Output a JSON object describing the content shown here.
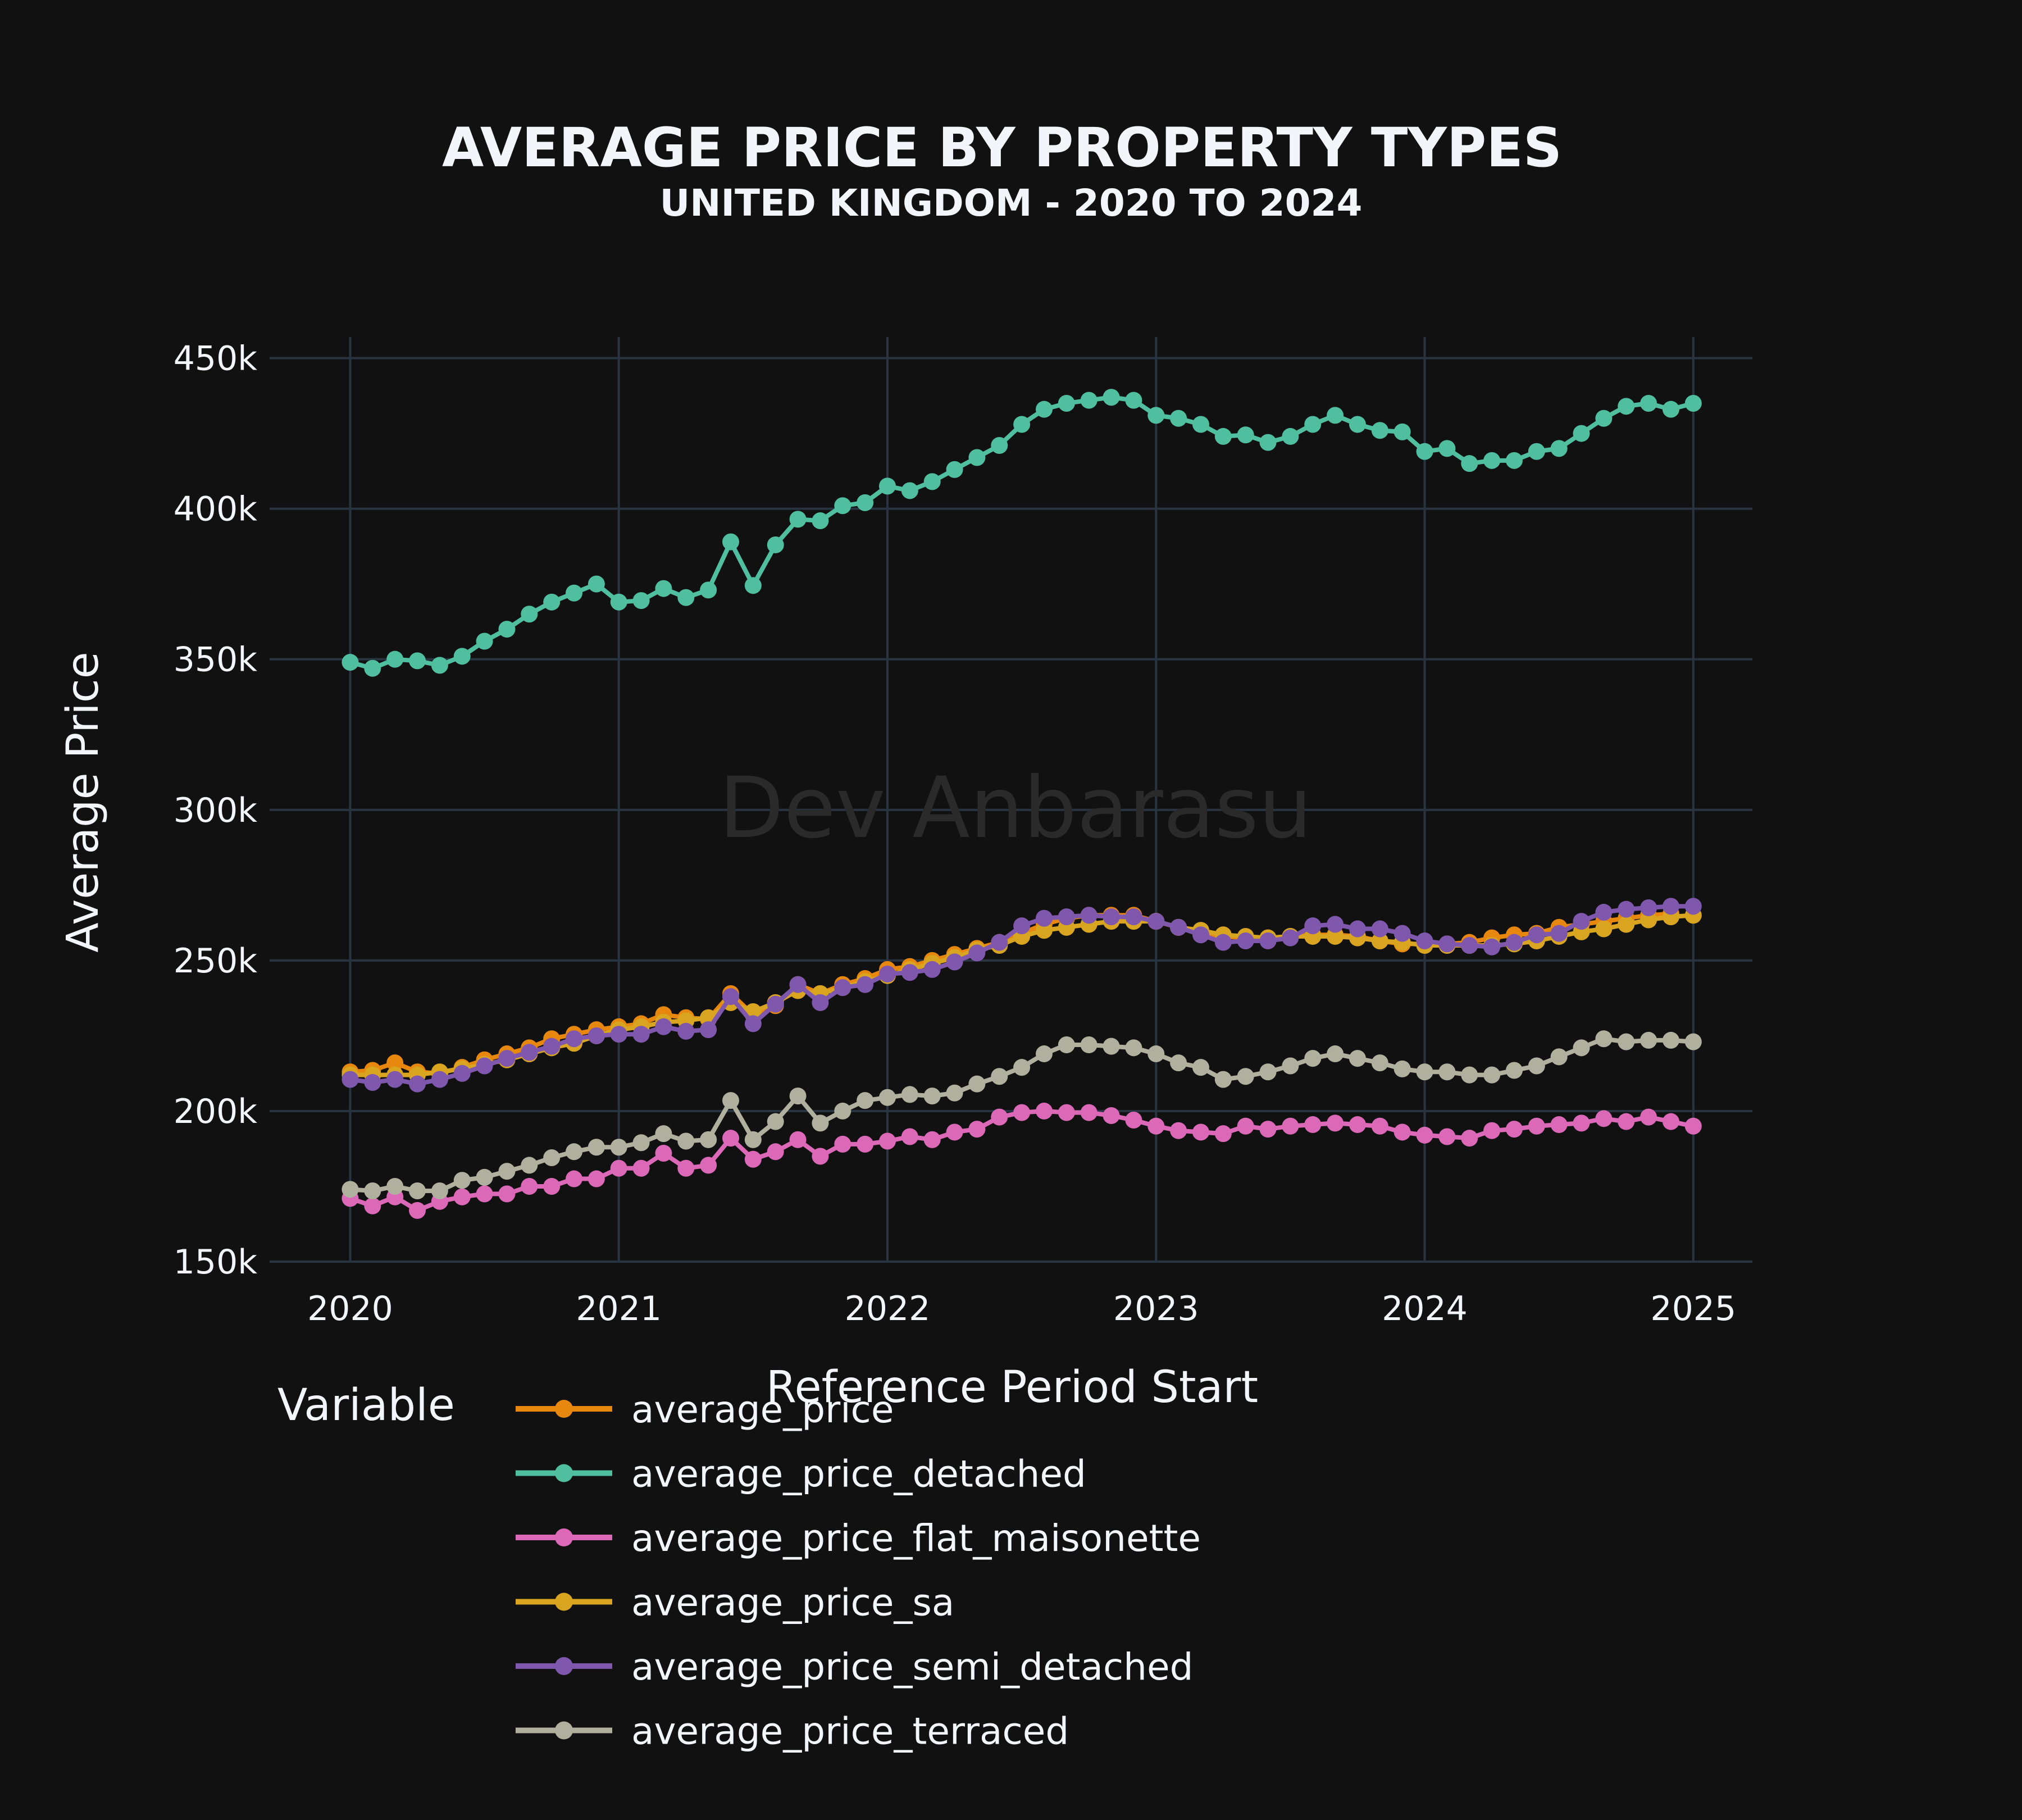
{
  "chart_data": {
    "type": "line",
    "title": "AVERAGE PRICE BY PROPERTY TYPES",
    "subtitle": "UNITED KINGDOM - 2020 TO 2024",
    "xlabel": "Reference Period Start",
    "ylabel": "Average Price",
    "watermark": "Dev Anbarasu",
    "legend_title": "Variable",
    "xlim": [
      2019.7,
      2025.22
    ],
    "ylim": [
      150000,
      457000
    ],
    "x_ticks": [
      2020,
      2021,
      2022,
      2023,
      2024,
      2025
    ],
    "x_tick_labels": [
      "2020",
      "2021",
      "2022",
      "2023",
      "2024",
      "2025"
    ],
    "y_ticks": [
      150000,
      200000,
      250000,
      300000,
      350000,
      400000,
      450000
    ],
    "y_tick_labels": [
      "150k",
      "200k",
      "250k",
      "300k",
      "350k",
      "400k",
      "450k"
    ],
    "x_start": "2020-01",
    "x_step_months": 1,
    "grid": true,
    "background": "#111111",
    "grid_color": "#283442",
    "series": [
      {
        "name": "average_price",
        "color": "#e8870e",
        "values": [
          213000,
          213500,
          216000,
          213000,
          212500,
          214500,
          217000,
          219000,
          221000,
          224000,
          225500,
          227000,
          228000,
          229000,
          232000,
          231000,
          230500,
          239000,
          232000,
          235000,
          242000,
          239000,
          242000,
          244000,
          247000,
          248000,
          250000,
          252000,
          254000,
          256000,
          259000,
          262000,
          264000,
          265000,
          265000,
          265000,
          263000,
          261000,
          259000,
          258000,
          257500,
          257500,
          258000,
          258500,
          258500,
          258000,
          256500,
          255500,
          255500,
          255500,
          256000,
          257500,
          258500,
          259000,
          261000,
          262000,
          263000,
          264000,
          265000,
          265500
        ]
      },
      {
        "name": "average_price_detached",
        "color": "#4fbf9f",
        "values": [
          349000,
          347000,
          350000,
          349500,
          348000,
          351000,
          356000,
          360000,
          365000,
          369000,
          372000,
          375000,
          369000,
          369500,
          373500,
          370500,
          373000,
          389000,
          374500,
          388000,
          396500,
          396000,
          401000,
          402000,
          407500,
          406000,
          409000,
          413000,
          417000,
          421000,
          428000,
          433000,
          435000,
          436000,
          437000,
          436000,
          431000,
          430000,
          428000,
          424000,
          424500,
          422000,
          424000,
          428000,
          431000,
          428000,
          426000,
          425500,
          419000,
          420000,
          415000,
          416000,
          416000,
          419000,
          420000,
          425000,
          430000,
          434000,
          435000,
          433000,
          435000
        ]
      },
      {
        "name": "average_price_flat_maisonette",
        "color": "#dc68b8",
        "values": [
          171000,
          168500,
          171500,
          167000,
          170000,
          171500,
          172500,
          172500,
          175000,
          175000,
          177500,
          177500,
          181000,
          181000,
          186000,
          181000,
          182000,
          191000,
          184000,
          186500,
          190500,
          185000,
          189000,
          189000,
          190000,
          191500,
          190500,
          193000,
          194000,
          198000,
          199500,
          200000,
          199500,
          199500,
          198500,
          197000,
          195000,
          193500,
          193000,
          192500,
          195000,
          194000,
          195000,
          195500,
          196000,
          195500,
          195000,
          193000,
          192000,
          191500,
          191000,
          193500,
          194000,
          195000,
          195500,
          196000,
          197500,
          196500,
          198000,
          196500,
          195000
        ]
      },
      {
        "name": "average_price_sa",
        "color": "#d9a521",
        "values": [
          212000,
          212000,
          212000,
          212000,
          213000,
          214000,
          215500,
          217000,
          219000,
          221000,
          222500,
          225000,
          227000,
          228000,
          229500,
          230000,
          231000,
          236000,
          233000,
          236000,
          240000,
          239000,
          241000,
          243000,
          245000,
          247000,
          249000,
          251000,
          253500,
          255000,
          258000,
          260000,
          261000,
          262000,
          263000,
          263000,
          263000,
          261000,
          260000,
          258500,
          258000,
          257500,
          258000,
          258000,
          258000,
          257500,
          256500,
          256000,
          255000,
          255000,
          255000,
          255000,
          255500,
          256500,
          258000,
          259500,
          260500,
          262000,
          263500,
          264500,
          265000
        ]
      },
      {
        "name": "average_price_semi_detached",
        "color": "#7f58ae",
        "values": [
          210500,
          209500,
          210500,
          209000,
          210500,
          212500,
          215000,
          217500,
          219500,
          221500,
          224000,
          225000,
          225500,
          225500,
          228000,
          226500,
          227000,
          238000,
          229000,
          235500,
          242000,
          236000,
          241000,
          242000,
          245500,
          246000,
          247000,
          249500,
          252500,
          256000,
          261500,
          264000,
          264500,
          265000,
          264500,
          264500,
          263000,
          261000,
          258500,
          256000,
          256500,
          256500,
          257500,
          261500,
          262000,
          260500,
          260500,
          259000,
          256500,
          255500,
          255000,
          254500,
          256000,
          258500,
          259000,
          263000,
          266000,
          267000,
          267500,
          268000,
          268000
        ]
      },
      {
        "name": "average_price_terraced",
        "color": "#b0b09e",
        "values": [
          174000,
          173500,
          175000,
          173500,
          173500,
          177000,
          178000,
          180000,
          182000,
          184500,
          186500,
          188000,
          188000,
          189500,
          192500,
          190000,
          190500,
          203500,
          190500,
          196500,
          205000,
          196000,
          200000,
          203500,
          204500,
          205500,
          205000,
          206000,
          209000,
          211500,
          214500,
          219000,
          222000,
          222000,
          221500,
          221000,
          219000,
          216000,
          214500,
          210500,
          211500,
          213000,
          215000,
          217500,
          219000,
          217500,
          216000,
          214000,
          213000,
          213000,
          212000,
          212000,
          213500,
          215000,
          218000,
          221000,
          224000,
          223000,
          223500,
          223500,
          223000
        ]
      }
    ]
  }
}
